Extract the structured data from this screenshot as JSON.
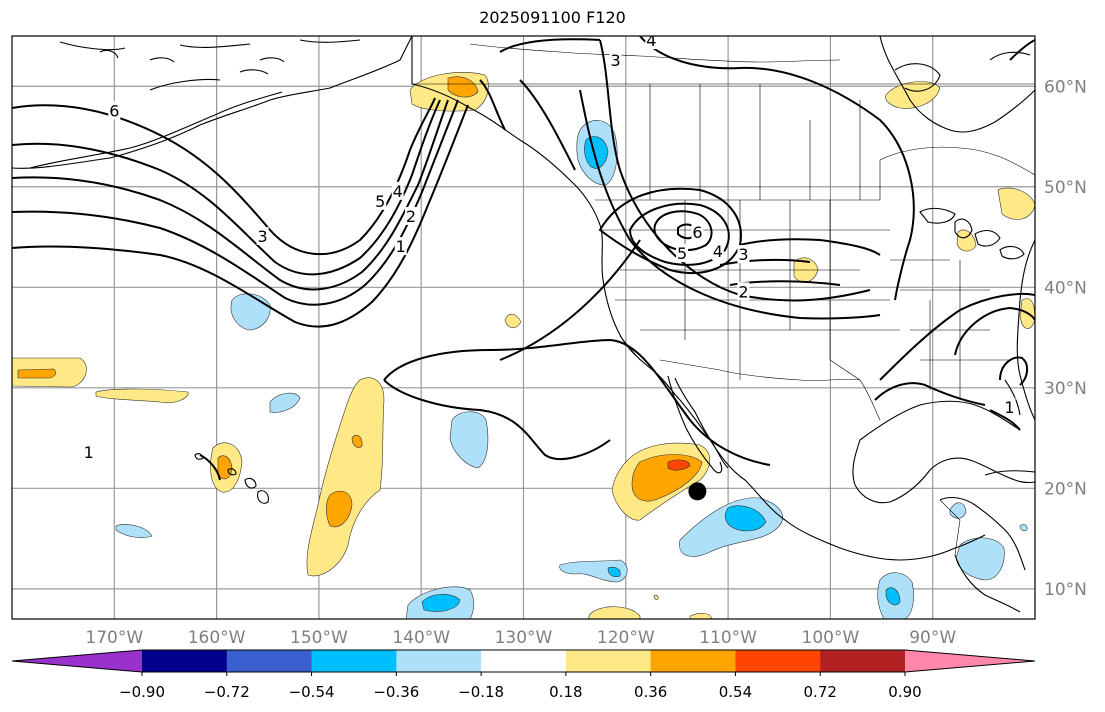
{
  "title": "2025091100 F120",
  "map": {
    "lon_range": [
      -180,
      -80
    ],
    "lat_range": [
      7,
      65
    ],
    "lon_ticks": [
      {
        "label": "170°W",
        "lon": -170
      },
      {
        "label": "160°W",
        "lon": -160
      },
      {
        "label": "150°W",
        "lon": -150
      },
      {
        "label": "140°W",
        "lon": -140
      },
      {
        "label": "130°W",
        "lon": -130
      },
      {
        "label": "120°W",
        "lon": -120
      },
      {
        "label": "110°W",
        "lon": -110
      },
      {
        "label": "100°W",
        "lon": -100
      },
      {
        "label": "90°W",
        "lon": -90
      }
    ],
    "lat_ticks": [
      {
        "label": "60°N",
        "lat": 60
      },
      {
        "label": "50°N",
        "lat": 50
      },
      {
        "label": "40°N",
        "lat": 40
      },
      {
        "label": "30°N",
        "lat": 30
      },
      {
        "label": "20°N",
        "lat": 20
      },
      {
        "label": "10°N",
        "lat": 10
      }
    ],
    "marker": {
      "lon": -113,
      "lat": 19.7
    },
    "contour_labels": [
      {
        "text": "6",
        "lon": -170,
        "lat": 57.5
      },
      {
        "text": "3",
        "lon": -155.5,
        "lat": 45
      },
      {
        "text": "5",
        "lon": -144,
        "lat": 48.5
      },
      {
        "text": "4",
        "lon": -142.3,
        "lat": 49.5
      },
      {
        "text": "2",
        "lon": -141,
        "lat": 47
      },
      {
        "text": "1",
        "lon": -142,
        "lat": 44
      },
      {
        "text": "3",
        "lon": -121,
        "lat": 62.5
      },
      {
        "text": "4",
        "lon": -117.5,
        "lat": 64.5
      },
      {
        "text": "6",
        "lon": -113,
        "lat": 45.4
      },
      {
        "text": "5",
        "lon": -114.5,
        "lat": 43.3
      },
      {
        "text": "4",
        "lon": -111,
        "lat": 43.5
      },
      {
        "text": "3",
        "lon": -108.5,
        "lat": 43.2
      },
      {
        "text": "2",
        "lon": -108.5,
        "lat": 39.5
      },
      {
        "text": "1",
        "lon": -82.5,
        "lat": 28
      },
      {
        "text": "1",
        "lon": -172.5,
        "lat": 23.5
      }
    ]
  },
  "colorbar": {
    "colors": [
      "#9932cc",
      "#00008b",
      "#3b5fcf",
      "#00bfff",
      "#aee0fa",
      "#ffffff",
      "#ffe987",
      "#ffa500",
      "#ff4500",
      "#b22222",
      "#ff88aa"
    ],
    "labels": [
      "−0.90",
      "−0.72",
      "−0.54",
      "−0.36",
      "−0.18",
      "0.18",
      "0.36",
      "0.54",
      "0.72",
      "0.90"
    ]
  }
}
